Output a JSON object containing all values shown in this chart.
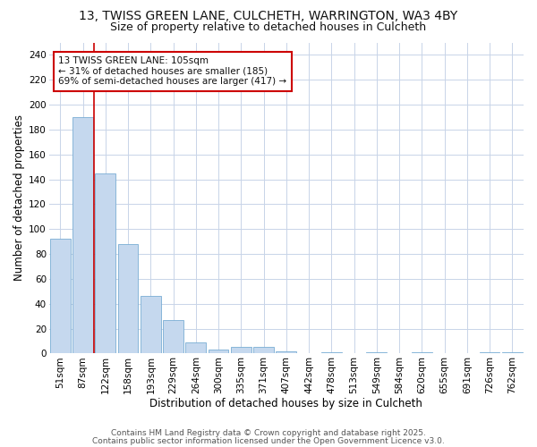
{
  "title": "13, TWISS GREEN LANE, CULCHETH, WARRINGTON, WA3 4BY",
  "subtitle": "Size of property relative to detached houses in Culcheth",
  "xlabel": "Distribution of detached houses by size in Culcheth",
  "ylabel": "Number of detached properties",
  "categories": [
    "51sqm",
    "87sqm",
    "122sqm",
    "158sqm",
    "193sqm",
    "229sqm",
    "264sqm",
    "300sqm",
    "335sqm",
    "371sqm",
    "407sqm",
    "442sqm",
    "478sqm",
    "513sqm",
    "549sqm",
    "584sqm",
    "620sqm",
    "655sqm",
    "691sqm",
    "726sqm",
    "762sqm"
  ],
  "values": [
    92,
    190,
    145,
    88,
    46,
    27,
    9,
    3,
    5,
    5,
    2,
    0,
    1,
    0,
    1,
    0,
    1,
    0,
    0,
    1,
    1
  ],
  "bar_color": "#c5d8ee",
  "bar_edge_color": "#7aadd4",
  "grid_color": "#c8d4e8",
  "background_color": "#ffffff",
  "red_line_x": 1.5,
  "annotation_text": "13 TWISS GREEN LANE: 105sqm\n← 31% of detached houses are smaller (185)\n69% of semi-detached houses are larger (417) →",
  "annotation_box_facecolor": "#ffffff",
  "annotation_border_color": "#cc0000",
  "ylim": [
    0,
    250
  ],
  "yticks": [
    0,
    20,
    40,
    60,
    80,
    100,
    120,
    140,
    160,
    180,
    200,
    220,
    240
  ],
  "footer_line1": "Contains HM Land Registry data © Crown copyright and database right 2025.",
  "footer_line2": "Contains public sector information licensed under the Open Government Licence v3.0.",
  "title_fontsize": 10,
  "subtitle_fontsize": 9,
  "axis_label_fontsize": 8.5,
  "tick_fontsize": 7.5,
  "annotation_fontsize": 7.5,
  "footer_fontsize": 6.5
}
